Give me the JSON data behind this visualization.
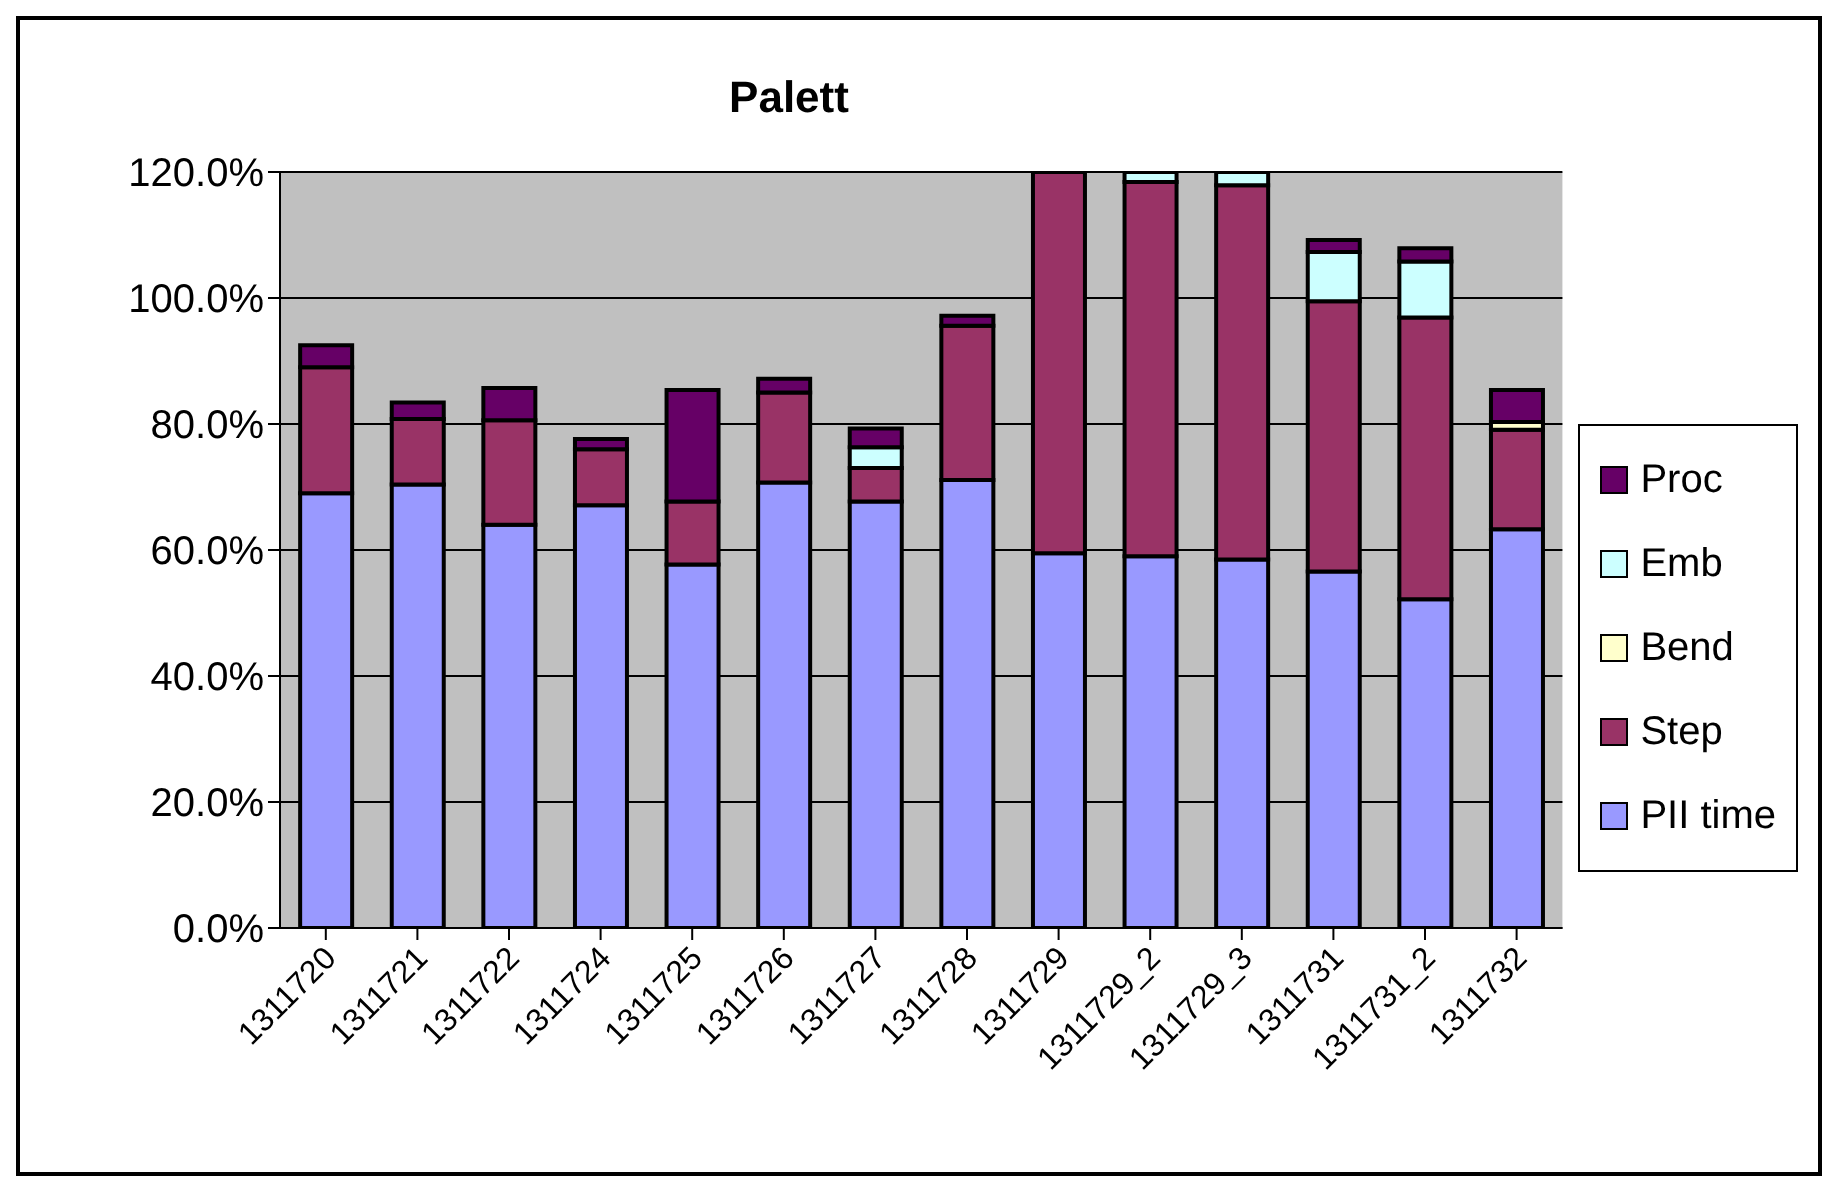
{
  "chart_data": {
    "type": "bar",
    "title": "Palett",
    "stacked": true,
    "categories": [
      "1311720",
      "1311721",
      "1311722",
      "1311724",
      "1311725",
      "1311726",
      "1311727",
      "1311728",
      "1311729",
      "1311729_2",
      "1311729_3",
      "1311731",
      "1311731_2",
      "1311732"
    ],
    "series": [
      {
        "name": "PII time",
        "color": "#9999ff",
        "values": [
          69,
          70.4,
          64,
          67.1,
          57.7,
          70.7,
          67.7,
          71.1,
          59.5,
          59,
          58.5,
          56.6,
          52.2,
          63.3
        ]
      },
      {
        "name": "Step",
        "color": "#993366",
        "values": [
          20,
          10.4,
          16.6,
          8.9,
          10,
          14.3,
          5.3,
          24.5,
          60.5,
          59.4,
          59.4,
          42.9,
          44.7,
          15.8
        ]
      },
      {
        "name": "Bend",
        "color": "#ffffcc",
        "values": [
          0,
          0,
          0,
          0,
          0,
          0,
          0,
          0,
          0,
          0,
          0,
          0,
          0,
          1.2
        ]
      },
      {
        "name": "Emb",
        "color": "#ccffff",
        "values": [
          0,
          0,
          0,
          0,
          0,
          0,
          3.3,
          0,
          0,
          1.6,
          2.1,
          7.8,
          8.9,
          0
        ]
      },
      {
        "name": "Proc",
        "color": "#660066",
        "values": [
          3.5,
          2.6,
          5.1,
          1.6,
          17.7,
          2.2,
          3,
          1.6,
          0,
          0,
          0,
          1.9,
          2.1,
          5.1
        ]
      }
    ],
    "ylim": [
      0,
      120
    ],
    "yticks": [
      {
        "value": 0,
        "label": "0.0%"
      },
      {
        "value": 20,
        "label": "20.0%"
      },
      {
        "value": 40,
        "label": "40.0%"
      },
      {
        "value": 60,
        "label": "60.0%"
      },
      {
        "value": 80,
        "label": "80.0%"
      },
      {
        "value": 100,
        "label": "100.0%"
      },
      {
        "value": 120,
        "label": "120.0%"
      }
    ],
    "grid": "y",
    "legend": "right"
  }
}
